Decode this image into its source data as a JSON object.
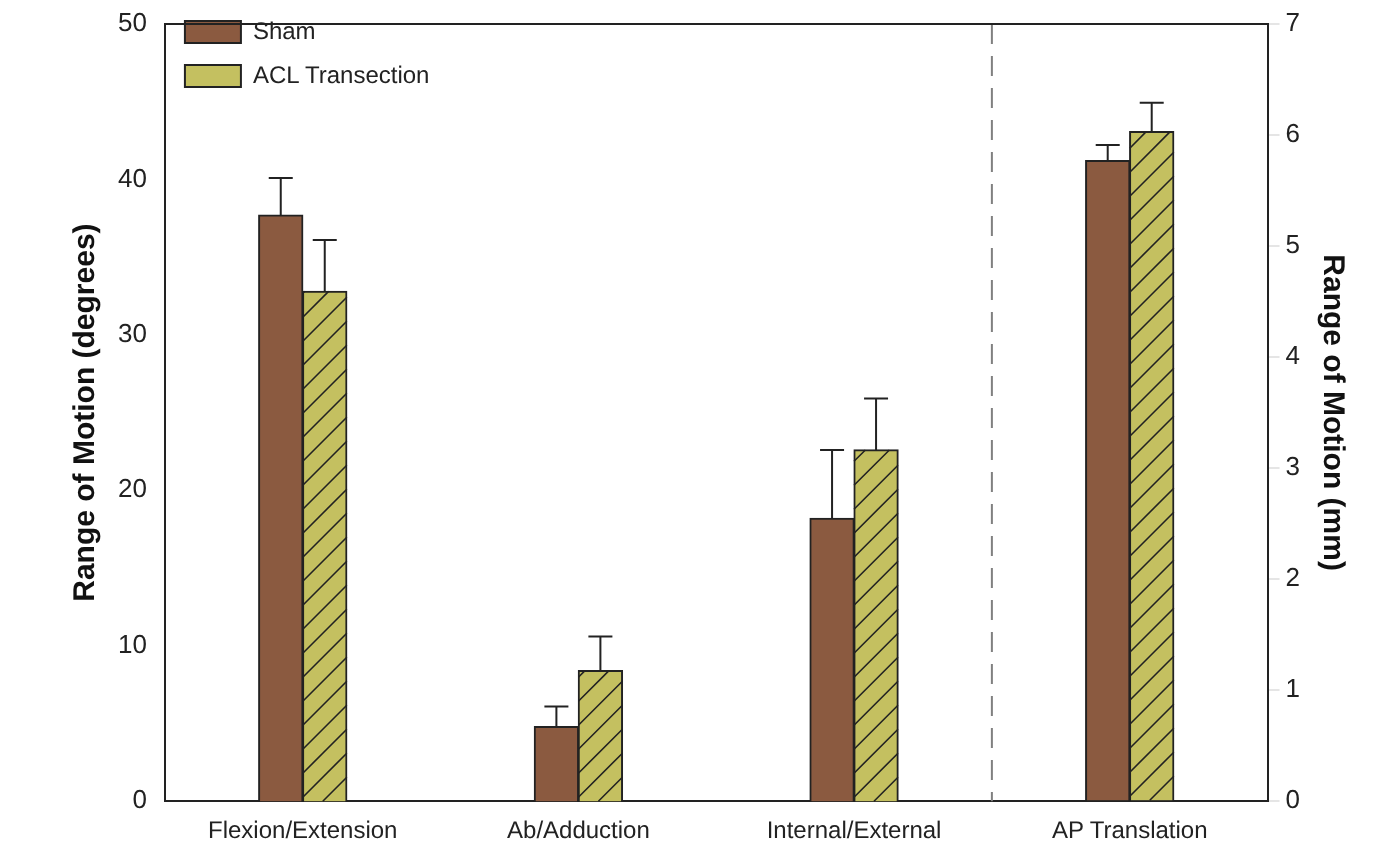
{
  "chart_data": {
    "type": "bar",
    "categories": [
      "Flexion/Extension",
      "Ab/Adduction",
      "Internal/External",
      "AP Translation"
    ],
    "series": [
      {
        "name": "Sham",
        "color": "#8b5a40",
        "values": [
          37.7,
          4.8,
          18.2,
          null
        ],
        "errors": [
          [
            37.7,
            40.1
          ],
          [
            4.8,
            6.1
          ],
          [
            18.2,
            22.6
          ],
          null
        ]
      },
      {
        "name": "ACL Transection",
        "color": "#c4c060",
        "values": [
          32.8,
          8.4,
          22.6,
          null
        ],
        "errors": [
          [
            32.8,
            36.1
          ],
          [
            8.4,
            10.6
          ],
          [
            22.6,
            25.9
          ],
          null
        ]
      },
      {
        "color": "#8b5a40",
        "axis": "y2",
        "values": [
          null,
          null,
          null,
          5.77
        ],
        "errors": [
          null,
          null,
          null,
          [
            5.77,
            5.91
          ]
        ]
      },
      {
        "color": "#c4c060",
        "axis": "y2",
        "values": [
          null,
          null,
          null,
          6.03
        ],
        "errors": [
          null,
          null,
          null,
          [
            6.03,
            6.29
          ]
        ]
      }
    ],
    "ylabel": "Range of Motion (degrees)",
    "y2label": "Range of Motion (mm)",
    "ylim": [
      0,
      50
    ],
    "yticks": [
      0,
      10,
      20,
      30,
      40,
      50
    ],
    "y2lim": [
      0,
      7
    ],
    "y2ticks": [
      0,
      1,
      2,
      3,
      4,
      5,
      6,
      7
    ],
    "grid": false,
    "legend": "top left"
  }
}
